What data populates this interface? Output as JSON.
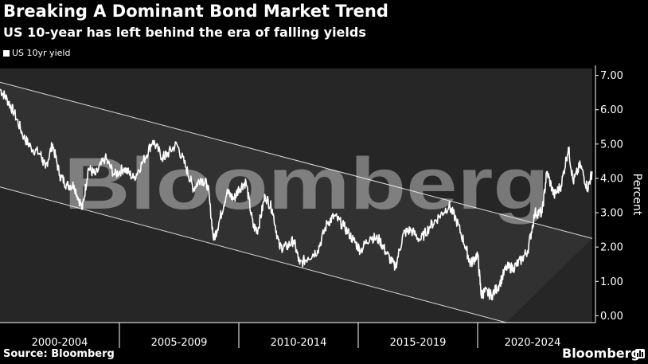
{
  "title": "Breaking A Dominant Bond Market Trend",
  "subtitle": "US 10-year has left behind the era of falling yields",
  "footer": {
    "source": "Source: Bloomberg",
    "brand": "Bloomberg",
    "brand_icon": "bar-chart-icon"
  },
  "watermark": "Bloomberg",
  "colors": {
    "background": "#000000",
    "plot_area": "#262626",
    "line": "#ffffff",
    "channel": "#d9d9d9"
  },
  "chart_data": {
    "type": "line",
    "title": "Breaking A Dominant Bond Market Trend",
    "subtitle": "US 10-year has left behind the era of falling yields",
    "ylabel": "Percent",
    "xlabel": "",
    "y_ticks": [
      "7.00",
      "6.00",
      "5.00",
      "4.00",
      "3.00",
      "2.00",
      "1.00",
      "0.00"
    ],
    "ylim": [
      -0.2,
      7.2
    ],
    "xlim": [
      2000.0,
      2024.8
    ],
    "x_ticks": [
      {
        "label": "2000-2004",
        "center": 2002.5
      },
      {
        "label": "2005-2009",
        "center": 2007.5
      },
      {
        "label": "2010-2014",
        "center": 2012.5
      },
      {
        "label": "2015-2019",
        "center": 2017.5
      },
      {
        "label": "2020-2024",
        "center": 2022.3
      }
    ],
    "grid": false,
    "legend": {
      "position": "top-left",
      "entries": [
        "US 10yr yield"
      ]
    },
    "channel": {
      "upper": [
        [
          2000.0,
          6.8
        ],
        [
          2024.8,
          2.25
        ]
      ],
      "lower": [
        [
          2000.0,
          3.75
        ],
        [
          2021.2,
          -0.2
        ]
      ]
    },
    "series": [
      {
        "name": "US 10yr yield",
        "x": [
          2000.0,
          2000.3,
          2000.6,
          2001.0,
          2001.3,
          2001.7,
          2001.9,
          2002.2,
          2002.5,
          2002.8,
          2003.1,
          2003.45,
          2003.7,
          2004.0,
          2004.4,
          2004.8,
          2005.2,
          2005.6,
          2006.0,
          2006.4,
          2006.8,
          2007.0,
          2007.4,
          2007.8,
          2008.1,
          2008.4,
          2008.7,
          2008.95,
          2009.2,
          2009.5,
          2009.8,
          2010.0,
          2010.3,
          2010.6,
          2010.8,
          2011.1,
          2011.4,
          2011.7,
          2012.0,
          2012.3,
          2012.55,
          2012.9,
          2013.3,
          2013.7,
          2014.0,
          2014.4,
          2014.8,
          2015.1,
          2015.5,
          2015.9,
          2016.2,
          2016.55,
          2016.9,
          2017.2,
          2017.6,
          2018.0,
          2018.4,
          2018.8,
          2019.1,
          2019.5,
          2019.7,
          2020.0,
          2020.15,
          2020.3,
          2020.6,
          2020.9,
          2021.2,
          2021.5,
          2021.8,
          2022.1,
          2022.4,
          2022.7,
          2022.9,
          2023.2,
          2023.5,
          2023.8,
          2024.0,
          2024.3,
          2024.6,
          2024.8
        ],
        "values": [
          6.6,
          6.3,
          5.9,
          5.2,
          4.9,
          4.7,
          4.3,
          5.0,
          4.1,
          3.8,
          3.8,
          3.1,
          4.3,
          4.1,
          4.6,
          4.1,
          4.3,
          4.0,
          4.5,
          5.1,
          4.6,
          4.7,
          5.0,
          4.3,
          3.7,
          4.0,
          3.8,
          2.2,
          2.8,
          3.6,
          3.4,
          3.7,
          3.9,
          2.6,
          2.5,
          3.5,
          3.1,
          2.0,
          2.0,
          2.2,
          1.5,
          1.7,
          1.9,
          2.7,
          2.9,
          2.6,
          2.2,
          1.9,
          2.3,
          2.2,
          1.8,
          1.4,
          2.4,
          2.5,
          2.2,
          2.6,
          2.9,
          3.2,
          2.8,
          2.0,
          1.5,
          1.8,
          0.6,
          0.7,
          0.6,
          0.9,
          1.4,
          1.4,
          1.6,
          1.9,
          3.0,
          3.0,
          4.2,
          3.5,
          3.8,
          4.9,
          3.9,
          4.4,
          3.7,
          4.2
        ]
      }
    ]
  }
}
